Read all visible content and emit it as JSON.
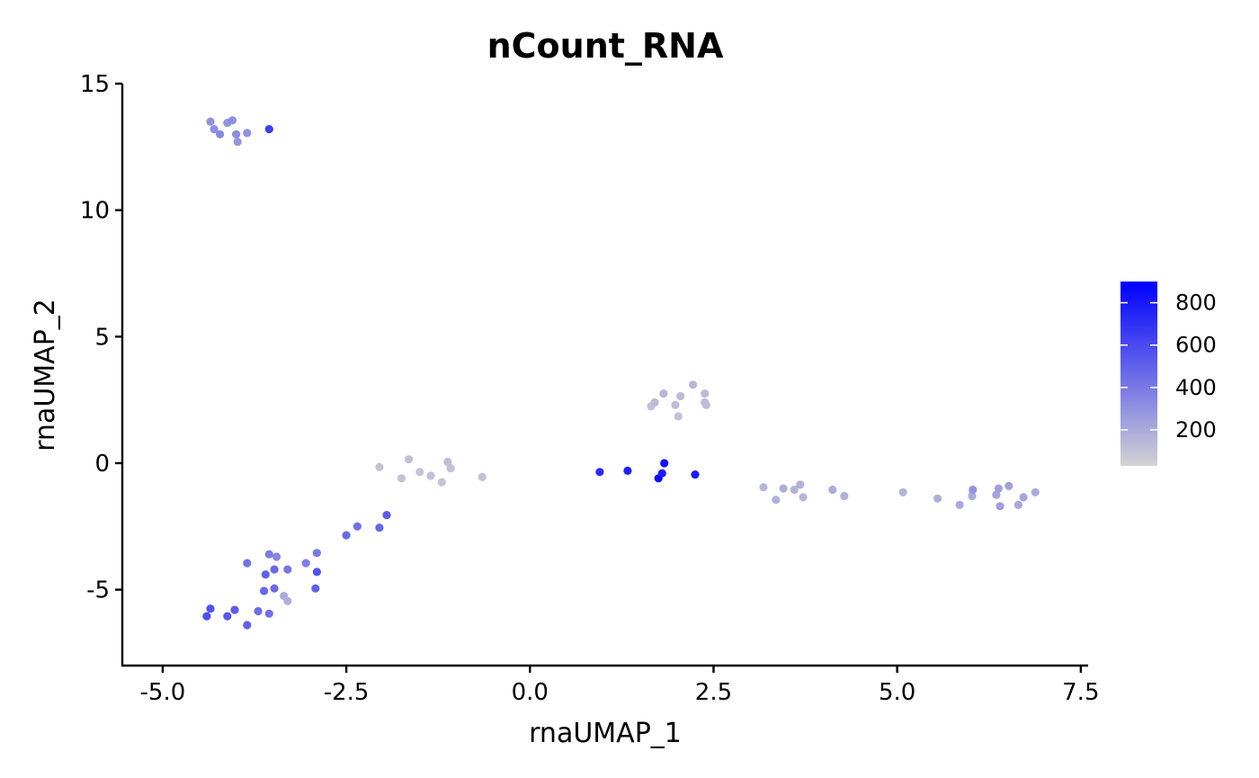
{
  "chart_data": {
    "type": "scatter",
    "title": "nCount_RNA",
    "xlabel": "rnaUMAP_1",
    "ylabel": "rnaUMAP_2",
    "xlim": [
      -5.55,
      7.6
    ],
    "ylim": [
      -8.0,
      15.0
    ],
    "x_ticks": [
      -5.0,
      -2.5,
      0.0,
      2.5,
      5.0,
      7.5
    ],
    "x_tick_labels": [
      "-5.0",
      "-2.5",
      "0.0",
      "2.5",
      "5.0",
      "7.5"
    ],
    "y_ticks": [
      -5,
      0,
      5,
      10,
      15
    ],
    "y_tick_labels": [
      "-5",
      "0",
      "5",
      "10",
      "15"
    ],
    "grid": false,
    "color_scale": {
      "low_color": "#d3d3d3",
      "high_color": "#0000ff",
      "min": 30,
      "max": 900,
      "ticks": [
        200,
        400,
        600,
        800
      ],
      "tick_labels": [
        "200",
        "400",
        "600",
        "800"
      ],
      "legend_position": "right"
    },
    "points": [
      {
        "x": -4.35,
        "y": 13.5,
        "v": 300
      },
      {
        "x": -4.3,
        "y": 13.2,
        "v": 320
      },
      {
        "x": -4.22,
        "y": 13.0,
        "v": 340
      },
      {
        "x": -4.12,
        "y": 13.45,
        "v": 290
      },
      {
        "x": -4.05,
        "y": 13.55,
        "v": 310
      },
      {
        "x": -4.0,
        "y": 13.0,
        "v": 330
      },
      {
        "x": -3.98,
        "y": 12.7,
        "v": 280
      },
      {
        "x": -3.85,
        "y": 13.05,
        "v": 300
      },
      {
        "x": -3.55,
        "y": 13.2,
        "v": 640
      },
      {
        "x": -2.05,
        "y": -0.15,
        "v": 90
      },
      {
        "x": -1.65,
        "y": 0.15,
        "v": 110
      },
      {
        "x": -1.75,
        "y": -0.6,
        "v": 100
      },
      {
        "x": -1.5,
        "y": -0.35,
        "v": 95
      },
      {
        "x": -1.35,
        "y": -0.5,
        "v": 105
      },
      {
        "x": -1.2,
        "y": -0.75,
        "v": 95
      },
      {
        "x": -1.12,
        "y": 0.05,
        "v": 120
      },
      {
        "x": -1.08,
        "y": -0.2,
        "v": 110
      },
      {
        "x": -0.65,
        "y": -0.55,
        "v": 100
      },
      {
        "x": -1.95,
        "y": -2.05,
        "v": 520
      },
      {
        "x": -2.05,
        "y": -2.55,
        "v": 480
      },
      {
        "x": -2.35,
        "y": -2.5,
        "v": 440
      },
      {
        "x": -2.5,
        "y": -2.85,
        "v": 470
      },
      {
        "x": -2.9,
        "y": -3.55,
        "v": 400
      },
      {
        "x": -3.05,
        "y": -3.95,
        "v": 380
      },
      {
        "x": -2.9,
        "y": -4.3,
        "v": 560
      },
      {
        "x": -2.92,
        "y": -4.95,
        "v": 500
      },
      {
        "x": -3.3,
        "y": -4.2,
        "v": 420
      },
      {
        "x": -3.45,
        "y": -3.7,
        "v": 350
      },
      {
        "x": -3.55,
        "y": -3.6,
        "v": 390
      },
      {
        "x": -3.48,
        "y": -4.2,
        "v": 470
      },
      {
        "x": -3.6,
        "y": -4.4,
        "v": 500
      },
      {
        "x": -3.85,
        "y": -3.95,
        "v": 430
      },
      {
        "x": -3.62,
        "y": -5.05,
        "v": 480
      },
      {
        "x": -3.48,
        "y": -4.95,
        "v": 460
      },
      {
        "x": -3.35,
        "y": -5.25,
        "v": 200
      },
      {
        "x": -3.3,
        "y": -5.45,
        "v": 180
      },
      {
        "x": -3.55,
        "y": -5.95,
        "v": 440
      },
      {
        "x": -3.7,
        "y": -5.85,
        "v": 450
      },
      {
        "x": -3.85,
        "y": -6.4,
        "v": 500
      },
      {
        "x": -4.02,
        "y": -5.8,
        "v": 520
      },
      {
        "x": -4.12,
        "y": -6.05,
        "v": 540
      },
      {
        "x": -4.35,
        "y": -5.75,
        "v": 560
      },
      {
        "x": -4.4,
        "y": -6.05,
        "v": 580
      },
      {
        "x": 0.95,
        "y": -0.35,
        "v": 720
      },
      {
        "x": 1.33,
        "y": -0.3,
        "v": 770
      },
      {
        "x": 1.75,
        "y": -0.6,
        "v": 860
      },
      {
        "x": 1.8,
        "y": -0.4,
        "v": 780
      },
      {
        "x": 1.83,
        "y": 0.0,
        "v": 820
      },
      {
        "x": 2.25,
        "y": -0.45,
        "v": 790
      },
      {
        "x": 1.65,
        "y": 2.25,
        "v": 110
      },
      {
        "x": 1.7,
        "y": 2.4,
        "v": 130
      },
      {
        "x": 1.82,
        "y": 2.75,
        "v": 140
      },
      {
        "x": 1.98,
        "y": 2.3,
        "v": 120
      },
      {
        "x": 2.05,
        "y": 2.65,
        "v": 130
      },
      {
        "x": 2.02,
        "y": 1.85,
        "v": 110
      },
      {
        "x": 2.22,
        "y": 3.1,
        "v": 140
      },
      {
        "x": 2.38,
        "y": 2.75,
        "v": 130
      },
      {
        "x": 2.38,
        "y": 2.4,
        "v": 120
      },
      {
        "x": 2.4,
        "y": 2.3,
        "v": 120
      },
      {
        "x": 3.18,
        "y": -0.95,
        "v": 150
      },
      {
        "x": 3.35,
        "y": -1.45,
        "v": 170
      },
      {
        "x": 3.45,
        "y": -1.0,
        "v": 180
      },
      {
        "x": 3.6,
        "y": -1.05,
        "v": 160
      },
      {
        "x": 3.68,
        "y": -0.85,
        "v": 170
      },
      {
        "x": 3.72,
        "y": -1.35,
        "v": 150
      },
      {
        "x": 4.12,
        "y": -1.05,
        "v": 190
      },
      {
        "x": 4.28,
        "y": -1.3,
        "v": 170
      },
      {
        "x": 5.08,
        "y": -1.15,
        "v": 160
      },
      {
        "x": 5.55,
        "y": -1.4,
        "v": 180
      },
      {
        "x": 5.85,
        "y": -1.65,
        "v": 200
      },
      {
        "x": 6.02,
        "y": -1.3,
        "v": 190
      },
      {
        "x": 6.03,
        "y": -1.05,
        "v": 300
      },
      {
        "x": 6.35,
        "y": -1.25,
        "v": 220
      },
      {
        "x": 6.38,
        "y": -1.0,
        "v": 230
      },
      {
        "x": 6.4,
        "y": -1.7,
        "v": 250
      },
      {
        "x": 6.52,
        "y": -0.9,
        "v": 240
      },
      {
        "x": 6.65,
        "y": -1.65,
        "v": 210
      },
      {
        "x": 6.72,
        "y": -1.35,
        "v": 220
      },
      {
        "x": 6.88,
        "y": -1.15,
        "v": 200
      }
    ]
  }
}
